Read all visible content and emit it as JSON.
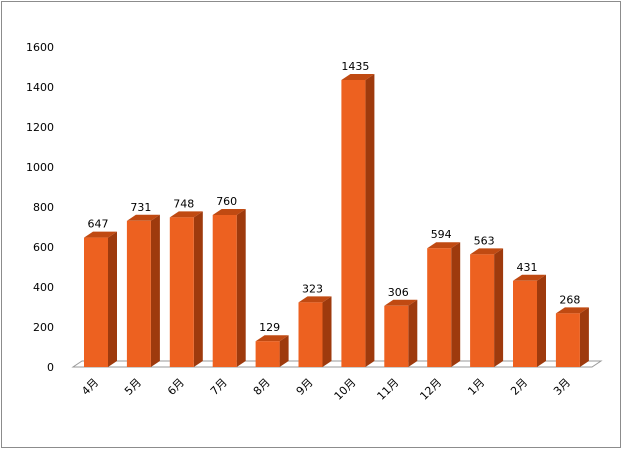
{
  "chart_data": {
    "type": "bar",
    "title": "",
    "xlabel": "",
    "ylabel": "",
    "categories": [
      "4月",
      "5月",
      "6月",
      "7月",
      "8月",
      "9月",
      "10月",
      "11月",
      "12月",
      "1月",
      "2月",
      "3月"
    ],
    "values": [
      647,
      731,
      748,
      760,
      129,
      323,
      1435,
      306,
      594,
      563,
      431,
      268
    ],
    "value_labels": [
      "647",
      "731",
      "748",
      "760",
      "129",
      "323",
      "1435",
      "306",
      "594",
      "563",
      "431",
      "268"
    ],
    "yticks": [
      "0",
      "200",
      "400",
      "600",
      "800",
      "1000",
      "1200",
      "1400",
      "1600"
    ],
    "ylim": [
      0,
      1600
    ],
    "grid": false,
    "legend": "none",
    "bar_style": "3d",
    "colors": {
      "bar_front": "#ED6120",
      "bar_top": "#C04A12",
      "bar_side": "#9E3A0D",
      "floor": "#9a9a9a"
    }
  }
}
